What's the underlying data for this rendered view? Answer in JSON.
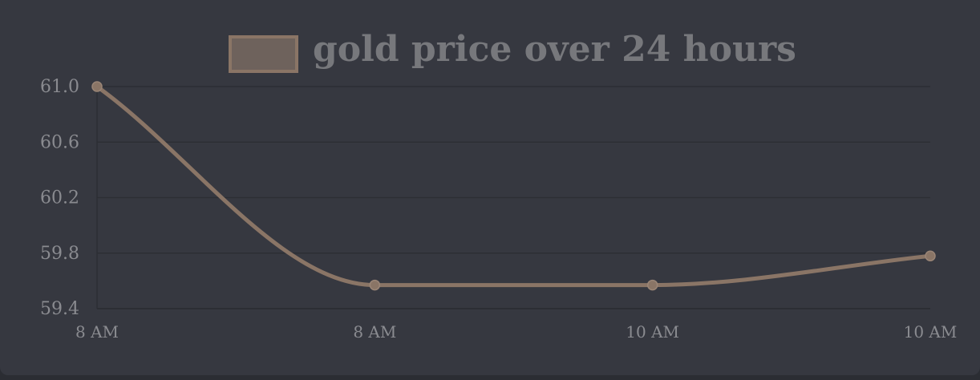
{
  "chart_data": {
    "type": "line",
    "title": "",
    "xlabel": "",
    "ylabel": "",
    "categories": [
      "8 AM",
      "8 AM",
      "10 AM",
      "10 AM"
    ],
    "series": [
      {
        "name": "gold price over 24 hours",
        "values": [
          61.0,
          59.57,
          59.57,
          59.78
        ]
      }
    ],
    "ylim": [
      59.4,
      61.0
    ],
    "y_ticks": [
      "61.0",
      "60.6",
      "60.2",
      "59.8",
      "59.4"
    ],
    "y_tick_values": [
      61.0,
      60.6,
      60.2,
      59.8,
      59.4
    ],
    "grid": true,
    "legend_position": "top-center",
    "colors": {
      "line": "#8a7566",
      "point": "#8a7566",
      "legend_fill": "#6e625c",
      "legend_border": "#8a7566",
      "grid": "#2c2e34",
      "background": "#363840"
    }
  }
}
